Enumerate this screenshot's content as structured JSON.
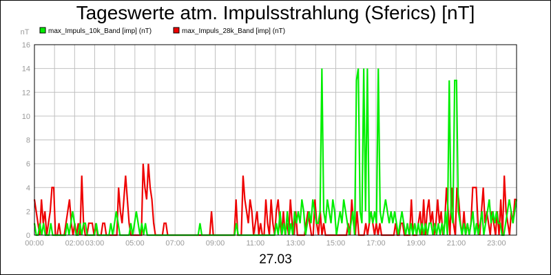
{
  "chart_data": {
    "type": "line",
    "title": "Tageswerte atm. Impulsstrahlung (Sferics) [nT]",
    "ylabel": "nT",
    "xlabel": "27.03",
    "ylim": [
      0,
      16
    ],
    "yticks": [
      "0",
      "2",
      "4",
      "6",
      "8",
      "10",
      "12",
      "14",
      "16"
    ],
    "xlim": [
      0,
      24
    ],
    "xticks": [
      {
        "x": 0,
        "label": "00:00"
      },
      {
        "x": 2,
        "label": "02:00"
      },
      {
        "x": 3,
        "label": "03:00"
      },
      {
        "x": 5,
        "label": "05:00"
      },
      {
        "x": 7,
        "label": "07:00"
      },
      {
        "x": 9,
        "label": "09:00"
      },
      {
        "x": 11,
        "label": "11:00"
      },
      {
        "x": 13,
        "label": "13:00"
      },
      {
        "x": 15,
        "label": "15:00"
      },
      {
        "x": 17,
        "label": "17:00"
      },
      {
        "x": 19,
        "label": "19:00"
      },
      {
        "x": 21,
        "label": "21:00"
      },
      {
        "x": 23,
        "label": "23:00"
      }
    ],
    "grid": true,
    "legend": "top-left",
    "sample_interval_min": 5,
    "series": [
      {
        "name": "max_Impuls_10k_Band [imp] (nT)",
        "color": "#00ee00",
        "values": [
          1,
          0,
          0,
          1,
          0,
          1,
          0,
          0,
          0,
          1,
          0,
          0,
          0,
          0,
          0,
          0,
          0,
          0,
          1,
          0,
          1,
          2,
          1,
          0,
          0,
          1,
          0,
          1,
          1,
          0,
          0,
          0,
          0,
          0,
          1,
          0,
          0,
          0,
          0,
          0,
          0,
          0,
          1,
          0,
          1,
          2,
          1,
          0,
          0,
          0,
          0,
          0,
          0,
          1,
          0,
          1,
          2,
          1,
          0,
          1,
          0,
          1,
          0,
          0,
          0,
          0,
          0,
          0,
          0,
          0,
          0,
          0,
          0,
          0,
          0,
          0,
          0,
          0,
          0,
          0,
          0,
          0,
          0,
          0,
          0,
          0,
          0,
          0,
          0,
          0,
          0,
          1,
          0,
          0,
          0,
          0,
          0,
          0,
          0,
          0,
          0,
          0,
          0,
          0,
          0,
          0,
          0,
          0,
          0,
          0,
          0,
          1,
          0,
          0,
          0,
          0,
          0,
          0,
          0,
          0,
          0,
          0,
          0,
          0,
          0,
          0,
          0,
          0,
          0,
          0,
          0,
          0,
          0,
          1,
          0,
          2,
          0,
          1,
          0,
          2,
          0,
          1,
          0,
          2,
          1,
          2,
          1,
          3,
          2,
          0,
          1,
          2,
          1,
          3,
          2,
          1,
          1,
          2,
          14,
          2,
          1,
          3,
          2,
          1,
          3,
          2,
          0,
          1,
          2,
          1,
          3,
          2,
          1,
          0,
          1,
          2,
          0,
          13,
          14,
          2,
          1,
          14,
          2,
          14,
          1,
          2,
          1,
          2,
          1,
          14,
          2,
          1,
          2,
          3,
          2,
          1,
          2,
          1,
          2,
          1,
          0,
          1,
          2,
          1,
          0,
          1,
          0,
          1,
          0,
          1,
          0,
          1,
          0,
          1,
          0,
          1,
          0,
          1,
          1,
          0,
          1,
          0,
          1,
          0,
          1,
          0,
          2,
          0,
          13,
          2,
          1,
          13,
          13,
          2,
          1,
          0,
          1,
          0,
          1,
          0,
          1,
          2,
          0,
          1,
          0,
          1,
          2,
          0,
          1,
          2,
          3,
          1,
          2,
          1,
          2,
          1,
          1,
          0,
          0,
          1,
          2,
          3,
          2,
          1,
          2,
          3
        ],
        "points_note": "5-minute samples starting at 00:00"
      },
      {
        "name": "max_Impuls_28k_Band [imp] (nT)",
        "color": "#ee0000",
        "values": [
          3,
          2,
          1,
          0,
          3,
          1,
          2,
          0,
          1,
          2,
          4,
          4,
          0,
          0,
          1,
          0,
          0,
          0,
          1,
          2,
          3,
          1,
          0,
          1,
          0,
          1,
          0,
          5,
          1,
          0,
          0,
          1,
          1,
          1,
          0,
          1,
          0,
          0,
          0,
          1,
          1,
          0,
          0,
          0,
          0,
          0,
          0,
          0,
          4,
          2,
          1,
          3,
          5,
          3,
          1,
          0,
          0,
          0,
          0,
          0,
          0,
          0,
          6,
          4,
          3,
          6,
          4,
          3,
          1,
          0,
          0,
          0,
          0,
          0,
          1,
          1,
          0,
          0,
          0,
          0,
          0,
          0,
          0,
          0,
          0,
          0,
          0,
          0,
          0,
          0,
          0,
          0,
          0,
          0,
          0,
          0,
          0,
          0,
          0,
          0,
          0,
          2,
          0,
          0,
          0,
          0,
          0,
          0,
          0,
          0,
          0,
          0,
          0,
          0,
          0,
          3,
          0,
          0,
          0,
          5,
          3,
          2,
          1,
          3,
          2,
          0,
          1,
          2,
          0,
          1,
          0,
          0,
          3,
          1,
          0,
          3,
          1,
          0,
          2,
          3,
          1,
          0,
          2,
          0,
          1,
          0,
          3,
          1,
          0,
          2,
          0,
          0,
          0,
          0,
          0,
          1,
          2,
          1,
          0,
          0,
          3,
          1,
          0,
          2,
          0,
          1,
          0,
          0,
          0,
          0,
          0,
          0,
          0,
          0,
          0,
          0,
          0,
          0,
          0,
          1,
          0,
          3,
          1,
          0,
          2,
          0,
          0,
          0,
          0,
          1,
          0,
          1,
          2,
          1,
          0,
          1,
          0,
          1,
          0,
          0,
          0,
          0,
          0,
          0,
          0,
          0,
          1,
          0,
          0,
          1,
          1,
          0,
          0,
          0,
          0,
          3,
          0,
          0,
          0,
          1,
          2,
          0,
          3,
          0,
          2,
          3,
          1,
          2,
          0,
          1,
          3,
          1,
          2,
          0,
          1,
          4,
          2,
          0,
          4,
          1,
          0,
          4,
          3,
          1,
          0,
          2,
          0,
          1,
          0,
          1,
          4,
          4,
          4,
          1,
          0,
          2,
          4,
          1,
          2,
          1,
          0,
          2,
          1,
          0,
          2,
          0,
          3,
          0,
          5,
          2,
          1,
          0,
          2,
          1,
          3,
          3
        ],
        "points_note": "5-minute samples starting at 00:00"
      }
    ]
  }
}
